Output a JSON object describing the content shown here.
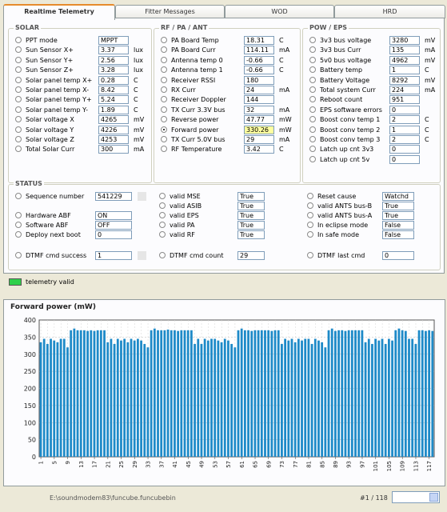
{
  "tabs": [
    "Realtime Telemetry",
    "Fitter Messages",
    "WOD",
    "HRD"
  ],
  "solar": {
    "title": "SOLAR",
    "rows": [
      {
        "label": "PPT mode",
        "value": "MPPT",
        "unit": ""
      },
      {
        "label": "Sun Sensor X+",
        "value": "3.37",
        "unit": "lux"
      },
      {
        "label": "Sun Sensor Y+",
        "value": "2.56",
        "unit": "lux"
      },
      {
        "label": "Sun Sensor Z+",
        "value": "3.28",
        "unit": "lux"
      },
      {
        "label": "Solar panel temp X+",
        "value": "0.28",
        "unit": "C"
      },
      {
        "label": "Solar panel temp X-",
        "value": "8.42",
        "unit": "C"
      },
      {
        "label": "Solar panel temp Y+",
        "value": "5.24",
        "unit": "C"
      },
      {
        "label": "Solar panel temp Y-",
        "value": "1.89",
        "unit": "C"
      },
      {
        "label": "Solar voltage X",
        "value": "4265",
        "unit": "mV"
      },
      {
        "label": "Solar voltage Y",
        "value": "4226",
        "unit": "mV"
      },
      {
        "label": "Solar voltage Z",
        "value": "4253",
        "unit": "mV"
      },
      {
        "label": "Total Solar Curr",
        "value": "300",
        "unit": "mA"
      }
    ]
  },
  "rf": {
    "title": "RF / PA / ANT",
    "rows": [
      {
        "label": "PA Board Temp",
        "value": "18.31",
        "unit": "C"
      },
      {
        "label": "PA Board Curr",
        "value": "114.11",
        "unit": "mA"
      },
      {
        "label": "Antenna temp 0",
        "value": "-0.66",
        "unit": "C"
      },
      {
        "label": "Antenna temp 1",
        "value": "-0.66",
        "unit": "C"
      },
      {
        "label": "Receiver RSSI",
        "value": "180",
        "unit": ""
      },
      {
        "label": "RX Curr",
        "value": "24",
        "unit": "mA"
      },
      {
        "label": "Receiver Doppler",
        "value": "144",
        "unit": ""
      },
      {
        "label": "TX Curr 3.3V bus",
        "value": "32",
        "unit": "mA"
      },
      {
        "label": "Reverse power",
        "value": "47.77",
        "unit": "mW"
      },
      {
        "label": "Forward power",
        "value": "330.26",
        "unit": "mW"
      },
      {
        "label": "TX Curr 5.0V bus",
        "value": "29",
        "unit": "mA"
      },
      {
        "label": "RF Temperature",
        "value": "3.42",
        "unit": "C"
      }
    ]
  },
  "pow": {
    "title": "POW / EPS",
    "rows": [
      {
        "label": "3v3 bus voltage",
        "value": "3280",
        "unit": "mV"
      },
      {
        "label": "3v3 bus Curr",
        "value": "135",
        "unit": "mA"
      },
      {
        "label": "5v0 bus voltage",
        "value": "4962",
        "unit": "mV"
      },
      {
        "label": "Battery temp",
        "value": "1",
        "unit": "C"
      },
      {
        "label": "Battery Voltage",
        "value": "8292",
        "unit": "mV"
      },
      {
        "label": "Total system Curr",
        "value": "224",
        "unit": "mA"
      },
      {
        "label": "Reboot count",
        "value": "951",
        "unit": ""
      },
      {
        "label": "EPS software errors",
        "value": "0",
        "unit": ""
      },
      {
        "label": "Boost conv temp 1",
        "value": "2",
        "unit": "C"
      },
      {
        "label": "Boost conv temp 2",
        "value": "1",
        "unit": "C"
      },
      {
        "label": "Boost conv temp 3",
        "value": "2",
        "unit": "C"
      },
      {
        "label": "Latch up cnt 3v3",
        "value": "0",
        "unit": ""
      },
      {
        "label": "Latch up cnt 5v",
        "value": "0",
        "unit": ""
      }
    ]
  },
  "status": {
    "title": "STATUS",
    "col1": [
      {
        "label": "Sequence number",
        "value": "541229"
      },
      {
        "label": "Hardware ABF",
        "value": "ON"
      },
      {
        "label": "Software ABF",
        "value": "OFF"
      },
      {
        "label": "Deploy next boot",
        "value": "0"
      },
      {
        "label": "DTMF cmd success",
        "value": "1"
      }
    ],
    "col2": [
      {
        "label": "valid MSE",
        "value": "True"
      },
      {
        "label": "valid ASIB",
        "value": "True"
      },
      {
        "label": "valid EPS",
        "value": "True"
      },
      {
        "label": "valid PA",
        "value": "True"
      },
      {
        "label": "valid RF",
        "value": "True"
      },
      {
        "label": "DTMF cmd count",
        "value": "29"
      }
    ],
    "col3": [
      {
        "label": "Reset cause",
        "value": "Watchd"
      },
      {
        "label": "valid ANTS bus-B",
        "value": "True"
      },
      {
        "label": "valid ANTS bus-A",
        "value": "True"
      },
      {
        "label": "In eclipse mode",
        "value": "False"
      },
      {
        "label": "In safe mode",
        "value": "False"
      },
      {
        "label": "DTMF last cmd",
        "value": "0"
      }
    ]
  },
  "telemetry_valid": {
    "label": "telemetry valid",
    "color": "#2fd04a"
  },
  "chart_data": {
    "type": "bar",
    "title": "Forward power (mW)",
    "ylim": [
      0,
      400
    ],
    "yticks": [
      0,
      50,
      100,
      150,
      200,
      250,
      300,
      350,
      400
    ],
    "xticks": [
      "1",
      "5",
      "9",
      "13",
      "17",
      "21",
      "25",
      "29",
      "33",
      "37",
      "41",
      "45",
      "49",
      "53",
      "57",
      "61",
      "65",
      "69",
      "73",
      "77",
      "81",
      "85",
      "89",
      "93",
      "97",
      "101",
      "105",
      "109",
      "113",
      "117"
    ],
    "grid": true,
    "bar_color": "#1e8ac8",
    "x": [
      1,
      2,
      3,
      4,
      5,
      6,
      7,
      8,
      9,
      10,
      11,
      12,
      13,
      14,
      15,
      16,
      17,
      18,
      19,
      20,
      21,
      22,
      23,
      24,
      25,
      26,
      27,
      28,
      29,
      30,
      31,
      32,
      33,
      34,
      35,
      36,
      37,
      38,
      39,
      40,
      41,
      42,
      43,
      44,
      45,
      46,
      47,
      48,
      49,
      50,
      51,
      52,
      53,
      54,
      55,
      56,
      57,
      58,
      59,
      60,
      61,
      62,
      63,
      64,
      65,
      66,
      67,
      68,
      69,
      70,
      71,
      72,
      73,
      74,
      75,
      76,
      77,
      78,
      79,
      80,
      81,
      82,
      83,
      84,
      85,
      86,
      87,
      88,
      89,
      90,
      91,
      92,
      93,
      94,
      95,
      96,
      97,
      98,
      99,
      100,
      101,
      102,
      103,
      104,
      105,
      106,
      107,
      108,
      109,
      110,
      111,
      112,
      113,
      114,
      115,
      116,
      117,
      118
    ],
    "values": [
      335,
      345,
      330,
      345,
      340,
      335,
      345,
      345,
      320,
      370,
      375,
      370,
      370,
      370,
      368,
      370,
      368,
      370,
      370,
      370,
      335,
      345,
      330,
      345,
      340,
      345,
      335,
      345,
      340,
      345,
      340,
      330,
      320,
      370,
      375,
      370,
      370,
      370,
      372,
      370,
      370,
      368,
      370,
      370,
      370,
      370,
      330,
      345,
      330,
      345,
      340,
      345,
      345,
      340,
      335,
      345,
      340,
      330,
      320,
      370,
      375,
      370,
      370,
      368,
      370,
      370,
      370,
      370,
      370,
      368,
      370,
      370,
      330,
      345,
      340,
      345,
      335,
      345,
      340,
      345,
      345,
      330,
      345,
      340,
      335,
      320,
      370,
      375,
      368,
      370,
      370,
      368,
      370,
      370,
      370,
      370,
      370,
      335,
      345,
      330,
      345,
      340,
      345,
      330,
      345,
      340,
      370,
      375,
      370,
      368,
      345,
      345,
      330,
      370,
      370,
      368,
      370,
      368
    ],
    "xlabel": "",
    "ylabel": ""
  },
  "statusbar": {
    "path": "E:\\soundmodem83\\funcube.funcubebin",
    "page": "#1 / 118"
  }
}
